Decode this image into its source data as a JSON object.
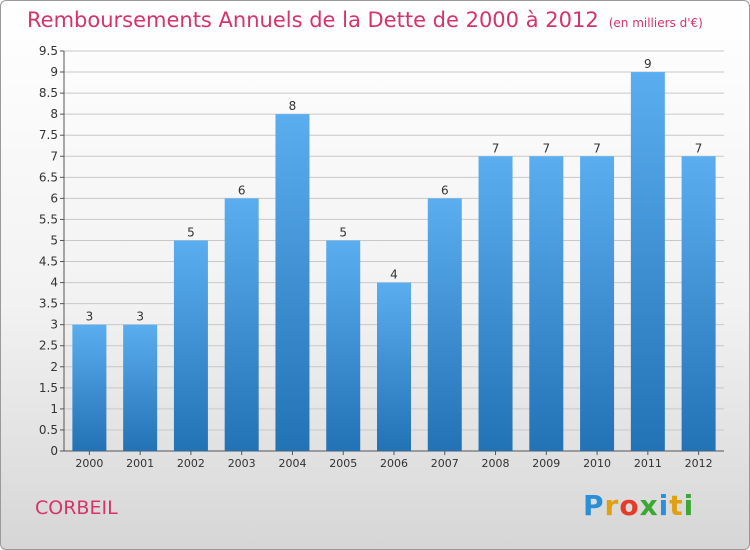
{
  "title": "Remboursements Annuels de la Dette de 2000 à 2012",
  "unit_note": "(en milliers d'€)",
  "town": "CORBEIL",
  "brand": {
    "letters": [
      "P",
      "r",
      "o",
      "x",
      "i",
      "t",
      "i"
    ],
    "colors": [
      "#2a8fd8",
      "#e0a010",
      "#e43c2a",
      "#3aa832",
      "#2a8fd8",
      "#e0a010",
      "#3aa832"
    ]
  },
  "colors": {
    "bar_top": "#5aaef0",
    "bar_bottom": "#2272b6",
    "accent": "#d6336c",
    "grid": "#c8c8c8"
  },
  "chart_data": {
    "type": "bar",
    "title": "Remboursements Annuels de la Dette de 2000 à 2012",
    "categories": [
      "2000",
      "2001",
      "2002",
      "2003",
      "2004",
      "2005",
      "2006",
      "2007",
      "2008",
      "2009",
      "2010",
      "2011",
      "2012"
    ],
    "values": [
      3,
      3,
      5,
      6,
      8,
      5,
      4,
      6,
      7,
      7,
      7,
      9,
      7
    ],
    "data_labels": [
      "3",
      "3",
      "5",
      "6",
      "8",
      "5",
      "4",
      "6",
      "7",
      "7",
      "7",
      "9",
      "7"
    ],
    "ylim": [
      0,
      9.5
    ],
    "yticks": [
      "0",
      "0.5",
      "1",
      "1.5",
      "2",
      "2.5",
      "3",
      "3.5",
      "4",
      "4.5",
      "5",
      "5.5",
      "6",
      "6.5",
      "7",
      "7.5",
      "8",
      "8.5",
      "9",
      "9.5"
    ],
    "grid": true,
    "xlabel": "",
    "ylabel": ""
  }
}
